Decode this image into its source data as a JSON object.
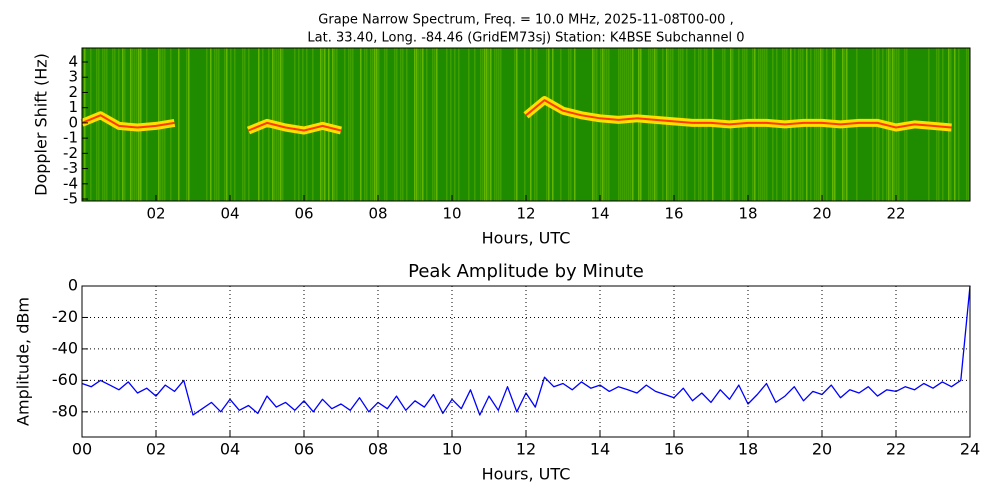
{
  "chart_data": [
    {
      "type": "spectrogram",
      "title": "Grape Narrow Spectrum, Freq. = 10.0 MHz, 2025-11-08T00-00 ,",
      "subtitle": "Lat.  33.40, Long. -84.46 (GridEM73sj) Station: K4BSE Subchannel 0",
      "x_label": "Hours, UTC",
      "y_label": "Doppler Shift (Hz)",
      "x": [
        0,
        0.5,
        1,
        1.5,
        2,
        2.5,
        3,
        3.5,
        4,
        4.5,
        5,
        5.5,
        6,
        6.5,
        7,
        7.5,
        8,
        8.5,
        9,
        9.5,
        10,
        10.5,
        11,
        11.5,
        12,
        12.5,
        13,
        13.5,
        14,
        14.5,
        15,
        15.5,
        16,
        16.5,
        17,
        17.5,
        18,
        18.5,
        19,
        19.5,
        20,
        20.5,
        21,
        21.5,
        22,
        22.5,
        23,
        23.5
      ],
      "values": [
        0.0,
        0.5,
        -0.2,
        -0.3,
        -0.2,
        0.0,
        null,
        null,
        null,
        -0.5,
        0.0,
        -0.3,
        -0.5,
        -0.2,
        -0.5,
        null,
        null,
        null,
        null,
        null,
        null,
        null,
        null,
        null,
        0.5,
        1.5,
        0.8,
        0.5,
        0.3,
        0.2,
        0.3,
        0.2,
        0.1,
        0.0,
        0.0,
        -0.1,
        0.0,
        0.0,
        -0.1,
        0.0,
        0.0,
        -0.1,
        0.0,
        0.0,
        -0.3,
        -0.1,
        -0.2,
        -0.3
      ],
      "color": "#ffe000",
      "xlim": [
        0,
        24
      ],
      "ylim": [
        -5.13,
        4.92
      ],
      "xticks": [
        {
          "value": 2,
          "label": "02"
        },
        {
          "value": 4,
          "label": "04"
        },
        {
          "value": 6,
          "label": "06"
        },
        {
          "value": 8,
          "label": "08"
        },
        10,
        12,
        14,
        16,
        18,
        20,
        22
      ],
      "yticks": [
        4,
        3,
        2,
        1,
        0,
        -1,
        -2,
        -3,
        -4,
        -5
      ],
      "grid": false
    },
    {
      "type": "line",
      "title": "Peak Amplitude by Minute",
      "x_label": "Hours, UTC",
      "y_label": "Amplitude, dBm",
      "x": [
        0,
        0.25,
        0.5,
        0.75,
        1,
        1.25,
        1.5,
        1.75,
        2,
        2.25,
        2.5,
        2.75,
        3,
        3.25,
        3.5,
        3.75,
        4,
        4.25,
        4.5,
        4.75,
        5,
        5.25,
        5.5,
        5.75,
        6,
        6.25,
        6.5,
        6.75,
        7,
        7.25,
        7.5,
        7.75,
        8,
        8.25,
        8.5,
        8.75,
        9,
        9.25,
        9.5,
        9.75,
        10,
        10.25,
        10.5,
        10.75,
        11,
        11.25,
        11.5,
        11.75,
        12,
        12.25,
        12.5,
        12.75,
        13,
        13.25,
        13.5,
        13.75,
        14,
        14.25,
        14.5,
        14.75,
        15,
        15.25,
        15.5,
        15.75,
        16,
        16.25,
        16.5,
        16.75,
        17,
        17.25,
        17.5,
        17.75,
        18,
        18.25,
        18.5,
        18.75,
        19,
        19.25,
        19.5,
        19.75,
        20,
        20.25,
        20.5,
        20.75,
        21,
        21.25,
        21.5,
        21.75,
        22,
        22.25,
        22.5,
        22.75,
        23,
        23.25,
        23.5,
        23.75,
        24
      ],
      "values": [
        -62,
        -64,
        -60,
        -63,
        -66,
        -61,
        -68,
        -65,
        -70,
        -63,
        -67,
        -60,
        -82,
        -78,
        -74,
        -80,
        -72,
        -79,
        -76,
        -81,
        -70,
        -77,
        -74,
        -79,
        -73,
        -80,
        -72,
        -78,
        -75,
        -79,
        -71,
        -80,
        -74,
        -78,
        -70,
        -79,
        -73,
        -77,
        -69,
        -81,
        -72,
        -78,
        -66,
        -82,
        -70,
        -79,
        -64,
        -80,
        -68,
        -77,
        -58,
        -64,
        -62,
        -66,
        -61,
        -65,
        -63,
        -67,
        -64,
        -66,
        -68,
        -63,
        -67,
        -69,
        -71,
        -65,
        -73,
        -68,
        -74,
        -66,
        -72,
        -63,
        -75,
        -69,
        -62,
        -74,
        -70,
        -64,
        -73,
        -67,
        -69,
        -63,
        -71,
        -66,
        -68,
        -64,
        -70,
        -66,
        -67,
        -64,
        -66,
        -62,
        -65,
        -61,
        -64,
        -60,
        0
      ],
      "color": "#0000ff",
      "xlim": [
        0,
        24
      ],
      "ylim": [
        -96,
        0
      ],
      "xticks": [
        {
          "value": 0,
          "label": "00"
        },
        {
          "value": 2,
          "label": "02"
        },
        {
          "value": 4,
          "label": "04"
        },
        {
          "value": 6,
          "label": "06"
        },
        {
          "value": 8,
          "label": "08"
        },
        10,
        12,
        14,
        16,
        18,
        20,
        22,
        24
      ],
      "yticks": [
        0,
        -20,
        -40,
        -60,
        -80
      ],
      "grid": true
    }
  ]
}
